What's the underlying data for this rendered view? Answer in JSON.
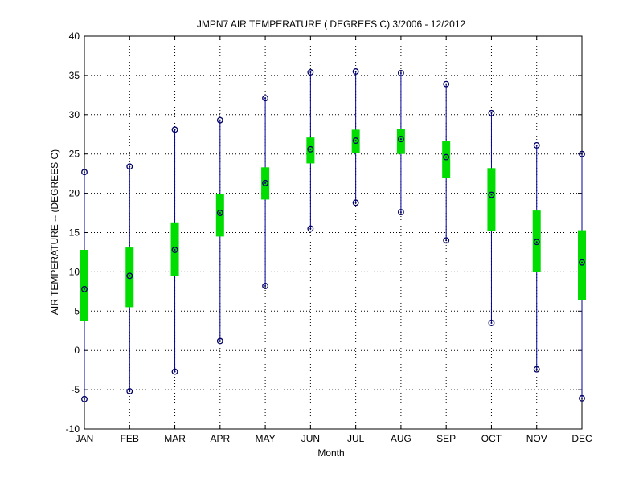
{
  "chart_data": {
    "type": "boxplot",
    "title": "JMPN7  AIR TEMPERATURE ( DEGREES C) 3/2006 - 12/2012",
    "xlabel": "Month",
    "ylabel": "AIR TEMPERATURE -- (DEGREES C)",
    "ylim": [
      -10,
      40
    ],
    "yticks": [
      -10,
      -5,
      0,
      5,
      10,
      15,
      20,
      25,
      30,
      35,
      40
    ],
    "grid": true,
    "categories": [
      "JAN",
      "FEB",
      "MAR",
      "APR",
      "MAY",
      "JUN",
      "JUL",
      "AUG",
      "SEP",
      "OCT",
      "NOV",
      "DEC"
    ],
    "min": [
      -6.2,
      -5.2,
      -2.7,
      1.2,
      8.2,
      15.5,
      18.8,
      17.6,
      14.0,
      3.5,
      -2.4,
      -6.1
    ],
    "q1": [
      3.8,
      5.5,
      9.5,
      14.5,
      19.2,
      23.8,
      25.1,
      25.0,
      22.0,
      15.2,
      10.0,
      6.4
    ],
    "median": [
      7.8,
      9.5,
      12.8,
      17.5,
      21.3,
      25.6,
      26.7,
      26.9,
      24.6,
      19.8,
      13.8,
      11.2
    ],
    "q3": [
      12.8,
      13.1,
      16.3,
      19.9,
      23.3,
      27.1,
      28.1,
      28.2,
      26.7,
      23.2,
      17.8,
      15.3
    ],
    "max": [
      22.7,
      23.4,
      28.1,
      29.3,
      32.1,
      35.4,
      35.5,
      35.3,
      33.9,
      30.2,
      26.1,
      25.0
    ],
    "colors": {
      "whisker": "#000099",
      "box": "#00dd00",
      "marker": "#000066",
      "grid": "#000000",
      "axis": "#000000"
    }
  }
}
